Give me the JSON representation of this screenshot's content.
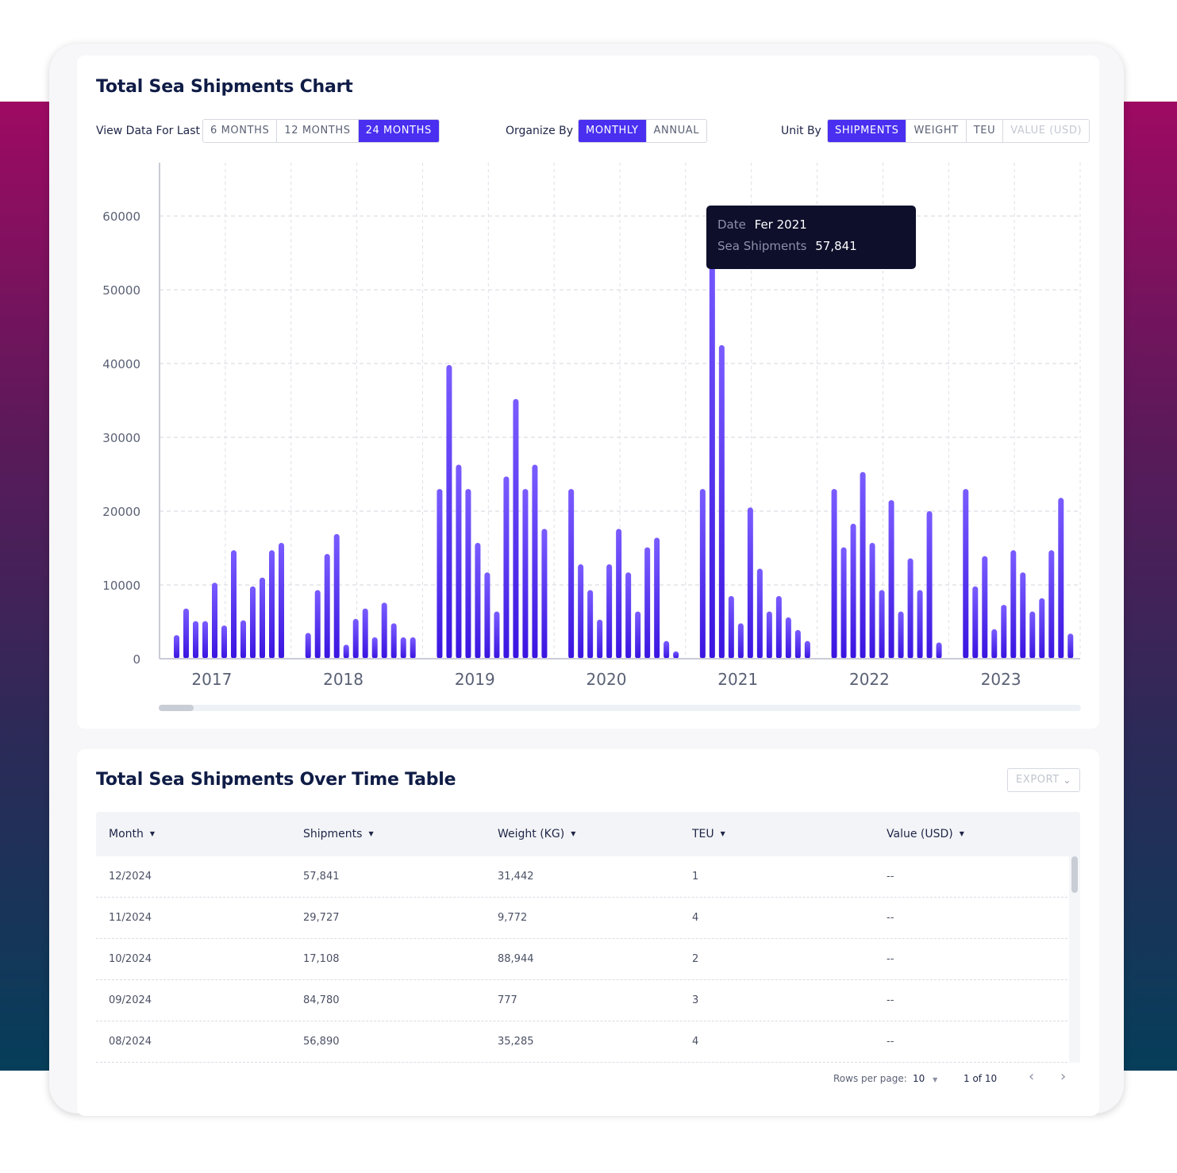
{
  "chart_card": {
    "title": "Total Sea Shipments Chart",
    "controls": {
      "view_label": "View Data For Last",
      "view_options": [
        "6 MONTHS",
        "12 MONTHS",
        "24 MONTHS"
      ],
      "organize_label": "Organize By",
      "organize_options": [
        "MONTHLY",
        "ANNUAL"
      ],
      "unit_label": "Unit By",
      "unit_options": [
        "SHIPMENTS",
        "WEIGHT",
        "TEU",
        "VALUE (USD)"
      ]
    },
    "tooltip": {
      "date_key": "Date",
      "date_value": "Fer 2021",
      "metric_key": "Sea Shipments",
      "metric_value": "57,841"
    }
  },
  "chart_data": {
    "type": "bar",
    "title": "Total Sea Shipments Chart",
    "xlabel": "",
    "ylabel": "",
    "ylim": [
      0,
      67000
    ],
    "yticks": [
      0,
      10000,
      20000,
      30000,
      40000,
      50000,
      60000
    ],
    "grid": true,
    "categories": [
      "2017",
      "2018",
      "2019",
      "2020",
      "2021",
      "2022",
      "2023"
    ],
    "series_per_year_monthly": [
      {
        "year": "2017",
        "values": [
          3200,
          6800,
          5100,
          5100,
          10300,
          4500,
          14700,
          5200,
          9800,
          11000,
          14700,
          15700
        ]
      },
      {
        "year": "2018",
        "values": [
          3500,
          9300,
          14200,
          16900,
          1900,
          5400,
          6800,
          2900,
          7600,
          4800,
          2900,
          2900
        ]
      },
      {
        "year": "2019",
        "values": [
          23000,
          39800,
          26300,
          23000,
          15700,
          11700,
          6400,
          24700,
          35200,
          23000,
          26300,
          17600
        ]
      },
      {
        "year": "2020",
        "values": [
          23000,
          12800,
          9300,
          5300,
          12800,
          17600,
          11700,
          6400,
          15100,
          16400,
          2400,
          1000
        ]
      },
      {
        "year": "2021",
        "values": [
          23000,
          57841,
          42500,
          8500,
          4800,
          20500,
          12200,
          6400,
          8500,
          5600,
          3900,
          2400
        ]
      },
      {
        "year": "2022",
        "values": [
          23000,
          15100,
          18300,
          25300,
          15700,
          9300,
          21500,
          6400,
          13600,
          9300,
          20000,
          2200
        ]
      },
      {
        "year": "2023",
        "values": [
          23000,
          9800,
          13900,
          4000,
          7300,
          14700,
          11700,
          6400,
          8200,
          14700,
          21800,
          3400
        ]
      }
    ],
    "highlighted": {
      "year": "2021",
      "month_index": 1,
      "value": 57841
    }
  },
  "table_card": {
    "title": "Total Sea Shipments Over Time Table",
    "export_label": "EXPORT",
    "columns": [
      "Month",
      "Shipments",
      "Weight (KG)",
      "TEU",
      "Value (USD)"
    ],
    "rows": [
      [
        "12/2024",
        "57,841",
        "31,442",
        "1",
        "--"
      ],
      [
        "11/2024",
        "29,727",
        "9,772",
        "4",
        "--"
      ],
      [
        "10/2024",
        "17,108",
        "88,944",
        "2",
        "--"
      ],
      [
        "09/2024",
        "84,780",
        "777",
        "3",
        "--"
      ],
      [
        "08/2024",
        "56,890",
        "35,285",
        "4",
        "--"
      ]
    ],
    "footer": {
      "rows_per_page_label": "Rows per page:",
      "rows_per_page_value": "10",
      "page_info": "1 of 10",
      "prev_icon": "‹",
      "next_icon": "›"
    }
  },
  "colors": {
    "accent": "#4a2ff0",
    "bar_top": "#7a5cff",
    "bar_bottom": "#3a14e0",
    "tooltip_bg": "#0d0f2b"
  }
}
